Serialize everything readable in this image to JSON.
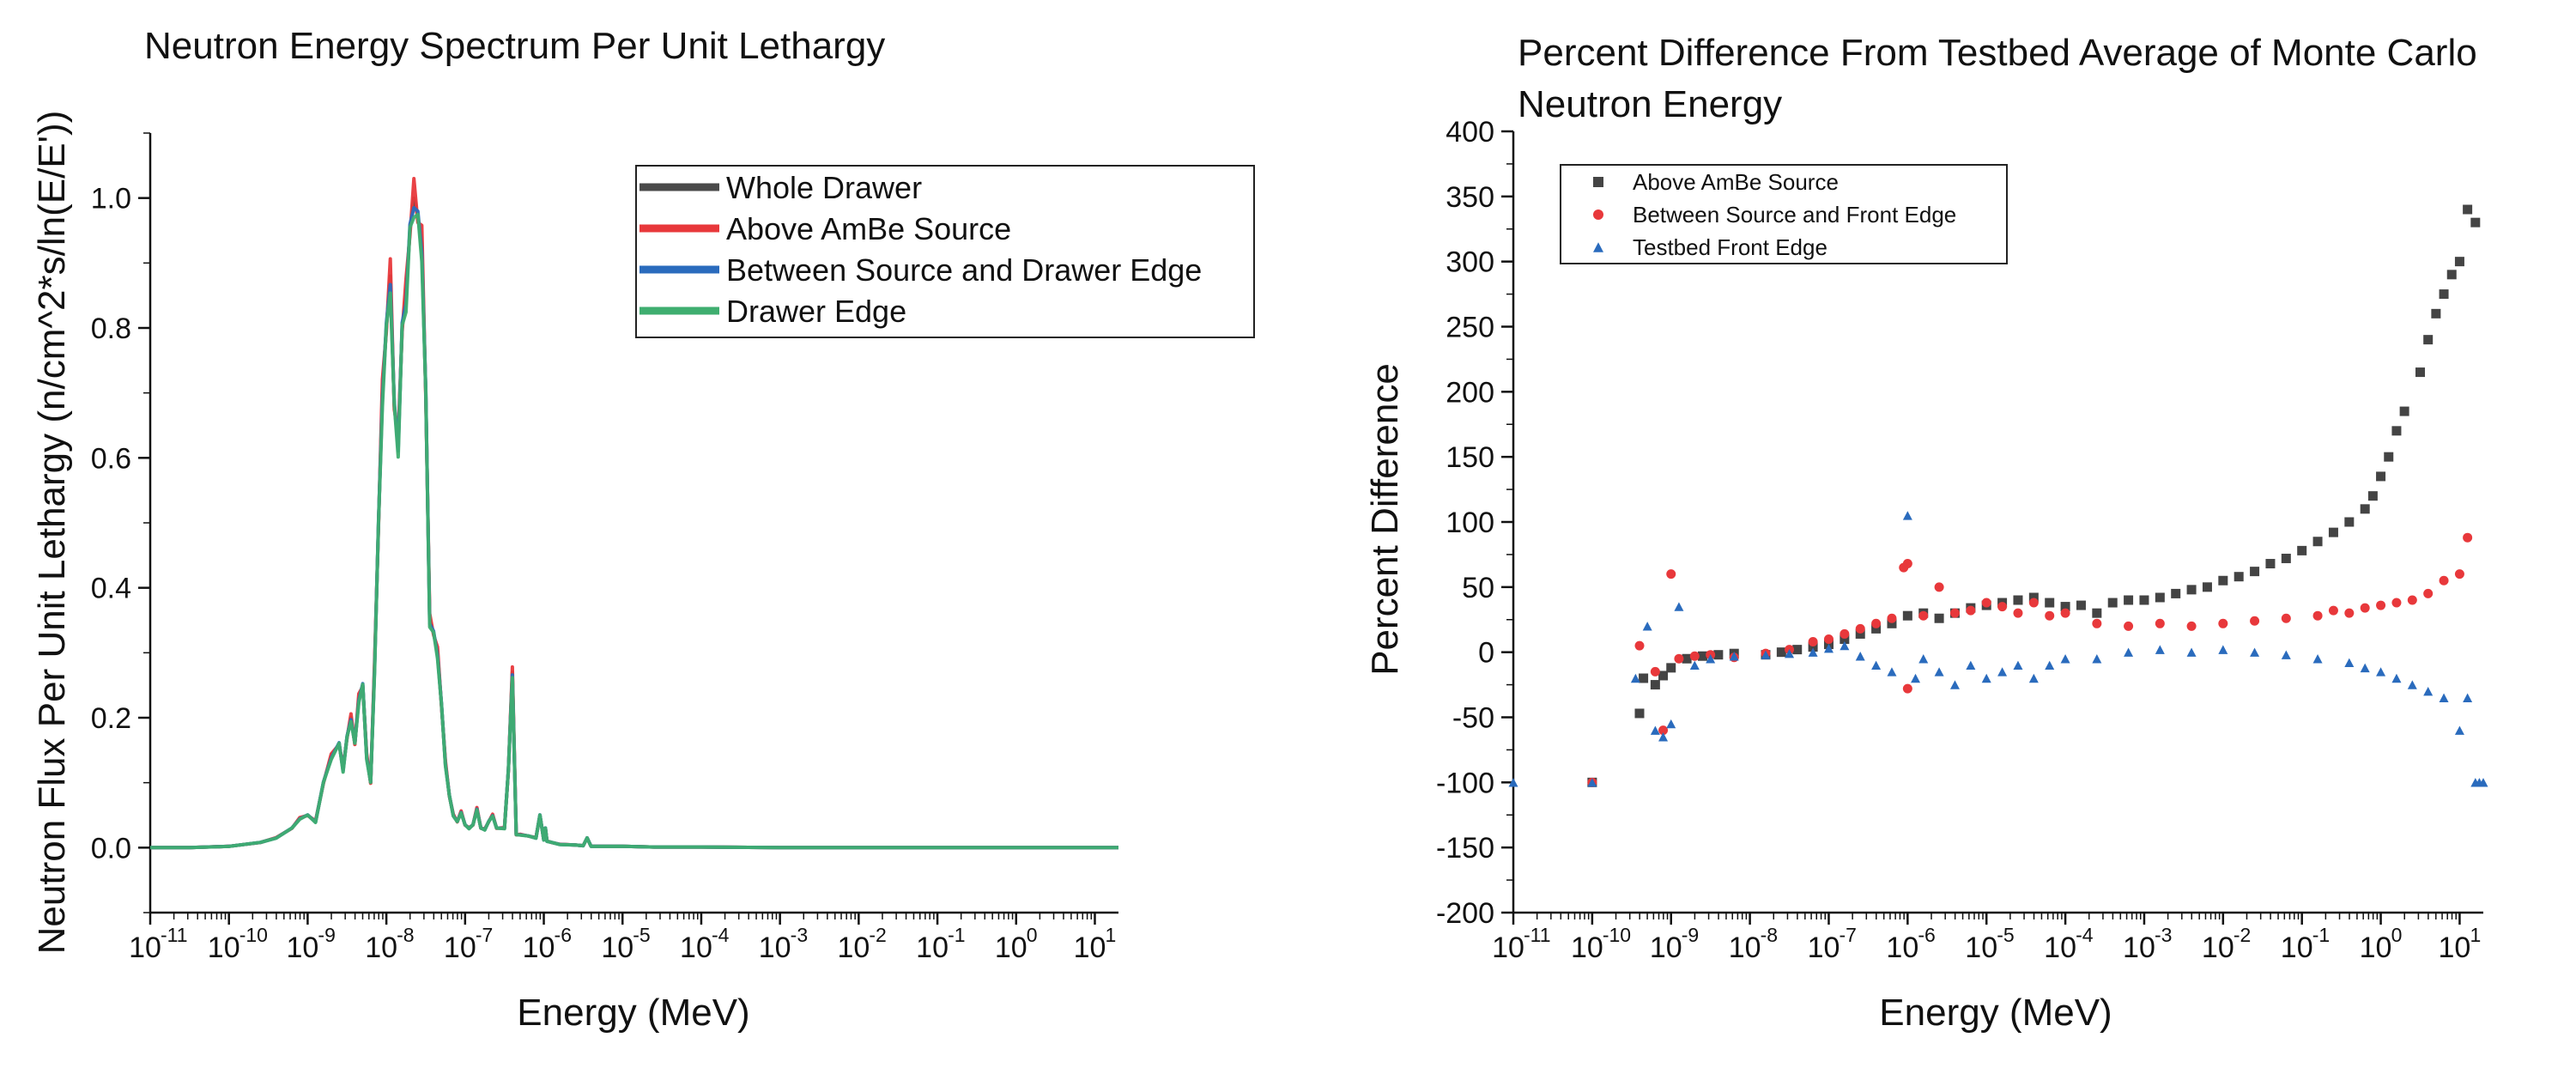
{
  "chart_data": [
    {
      "type": "line",
      "title": "Neutron Energy Spectrum Per Unit Lethargy",
      "xlabel": "Energy (MeV)",
      "ylabel": "Neutron Flux Per Unit Lethargy (n/cm^2*s/ln(E/E'))",
      "x_scale": "log",
      "xlim_exp": [
        -11,
        1.3
      ],
      "ylim": [
        -0.1,
        1.1
      ],
      "x_tick_exponents": [
        "-11",
        "-10",
        "-9",
        "-8",
        "-7",
        "-6",
        "-5",
        "-4",
        "-3",
        "-2",
        "-1",
        "0",
        "1"
      ],
      "x_tick_base": "10",
      "y_ticks": [
        "0.0",
        "0.2",
        "0.4",
        "0.6",
        "0.8",
        "1.0"
      ],
      "y_tick_values": [
        0,
        0.2,
        0.4,
        0.6,
        0.8,
        1.0
      ],
      "series": [
        {
          "name": "Whole Drawer",
          "color": "#4a4a4a"
        },
        {
          "name": "Above AmBe Source",
          "color": "#e8383b"
        },
        {
          "name": "Between Source and Drawer Edge",
          "color": "#2a6bbd"
        },
        {
          "name": "Drawer Edge",
          "color": "#3fae70"
        }
      ],
      "x_log10": [
        -11,
        -10.5,
        -10,
        -9.6,
        -9.4,
        -9.2,
        -9.1,
        -9.0,
        -8.9,
        -8.8,
        -8.7,
        -8.6,
        -8.55,
        -8.5,
        -8.45,
        -8.4,
        -8.35,
        -8.3,
        -8.25,
        -8.2,
        -8.15,
        -8.1,
        -8.05,
        -8.0,
        -7.95,
        -7.9,
        -7.85,
        -7.8,
        -7.75,
        -7.7,
        -7.65,
        -7.6,
        -7.55,
        -7.5,
        -7.45,
        -7.4,
        -7.35,
        -7.3,
        -7.25,
        -7.2,
        -7.15,
        -7.1,
        -7.05,
        -7.0,
        -6.95,
        -6.9,
        -6.85,
        -6.8,
        -6.75,
        -6.7,
        -6.65,
        -6.6,
        -6.5,
        -6.45,
        -6.4,
        -6.35,
        -6.3,
        -6.2,
        -6.1,
        -6.05,
        -6.0,
        -5.98,
        -5.96,
        -5.9,
        -5.8,
        -5.6,
        -5.5,
        -5.45,
        -5.4,
        -5.0,
        -4.6,
        -4.5,
        -4.4,
        -4.0,
        -3.0,
        -2.0,
        -1.0,
        0.0,
        1.0,
        1.3
      ],
      "y_base": [
        0,
        0,
        0.002,
        0.008,
        0.015,
        0.03,
        0.045,
        0.05,
        0.04,
        0.1,
        0.14,
        0.16,
        0.12,
        0.17,
        0.2,
        0.16,
        0.23,
        0.25,
        0.14,
        0.1,
        0.28,
        0.5,
        0.7,
        0.8,
        0.88,
        0.68,
        0.62,
        0.8,
        0.85,
        0.95,
        1.0,
        0.97,
        0.93,
        0.7,
        0.35,
        0.33,
        0.3,
        0.22,
        0.13,
        0.08,
        0.05,
        0.04,
        0.055,
        0.035,
        0.03,
        0.035,
        0.06,
        0.03,
        0.028,
        0.04,
        0.05,
        0.03,
        0.03,
        0.12,
        0.27,
        0.02,
        0.02,
        0.018,
        0.015,
        0.05,
        0.012,
        0.03,
        0.01,
        0.008,
        0.005,
        0.004,
        0.003,
        0.015,
        0.002,
        0.002,
        0.001,
        0.001,
        0.001,
        0.001,
        0,
        0,
        0,
        0,
        0,
        0
      ]
    },
    {
      "type": "scatter",
      "title": "Percent Difference From Testbed Average of Monte Carlo Neutron Energy",
      "title_lines": [
        "Percent Difference From Testbed Average of Monte Carlo",
        "Neutron Energy"
      ],
      "xlabel": "Energy (MeV)",
      "ylabel": "Percent Difference",
      "x_scale": "log",
      "xlim_exp": [
        -11,
        1.3
      ],
      "ylim": [
        -200,
        400
      ],
      "x_tick_exponents": [
        "-11",
        "-10",
        "-9",
        "-8",
        "-7",
        "-6",
        "-5",
        "-4",
        "-3",
        "-2",
        "-1",
        "0",
        "1"
      ],
      "x_tick_base": "10",
      "y_ticks": [
        "-200",
        "-150",
        "-100",
        "-50",
        "0",
        "50",
        "100",
        "150",
        "200",
        "250",
        "300",
        "350",
        "400"
      ],
      "y_tick_values": [
        -200,
        -150,
        -100,
        -50,
        0,
        50,
        100,
        150,
        200,
        250,
        300,
        350,
        400
      ],
      "series": [
        {
          "name": "Above AmBe Source",
          "marker": "square",
          "color": "#444444",
          "points": [
            [
              -10,
              -100
            ],
            [
              -9.4,
              -47
            ],
            [
              -9.35,
              -20
            ],
            [
              -9.2,
              -25
            ],
            [
              -9.1,
              -18
            ],
            [
              -9.0,
              -12
            ],
            [
              -8.8,
              -5
            ],
            [
              -8.6,
              -3
            ],
            [
              -8.4,
              -2
            ],
            [
              -8.2,
              -1
            ],
            [
              -7.8,
              -2
            ],
            [
              -7.6,
              0
            ],
            [
              -7.4,
              2
            ],
            [
              -7.2,
              4
            ],
            [
              -7.0,
              6
            ],
            [
              -6.8,
              10
            ],
            [
              -6.6,
              14
            ],
            [
              -6.4,
              18
            ],
            [
              -6.2,
              22
            ],
            [
              -6.0,
              28
            ],
            [
              -5.8,
              30
            ],
            [
              -5.6,
              26
            ],
            [
              -5.4,
              30
            ],
            [
              -5.2,
              34
            ],
            [
              -5.0,
              36
            ],
            [
              -4.8,
              38
            ],
            [
              -4.6,
              40
            ],
            [
              -4.4,
              42
            ],
            [
              -4.2,
              38
            ],
            [
              -4.0,
              35
            ],
            [
              -3.8,
              36
            ],
            [
              -3.6,
              30
            ],
            [
              -3.4,
              38
            ],
            [
              -3.2,
              40
            ],
            [
              -3.0,
              40
            ],
            [
              -2.8,
              42
            ],
            [
              -2.6,
              45
            ],
            [
              -2.4,
              48
            ],
            [
              -2.2,
              50
            ],
            [
              -2.0,
              55
            ],
            [
              -1.8,
              58
            ],
            [
              -1.6,
              62
            ],
            [
              -1.4,
              68
            ],
            [
              -1.2,
              72
            ],
            [
              -1.0,
              78
            ],
            [
              -0.8,
              85
            ],
            [
              -0.6,
              92
            ],
            [
              -0.4,
              100
            ],
            [
              -0.2,
              110
            ],
            [
              -0.1,
              120
            ],
            [
              0.0,
              135
            ],
            [
              0.1,
              150
            ],
            [
              0.2,
              170
            ],
            [
              0.3,
              185
            ],
            [
              0.5,
              215
            ],
            [
              0.6,
              240
            ],
            [
              0.7,
              260
            ],
            [
              0.8,
              275
            ],
            [
              0.9,
              290
            ],
            [
              1.0,
              300
            ],
            [
              1.1,
              340
            ],
            [
              1.2,
              330
            ]
          ]
        },
        {
          "name": "Between Source and Front Edge",
          "marker": "circle",
          "color": "#e8383b",
          "points": [
            [
              -10,
              -100
            ],
            [
              -9.4,
              5
            ],
            [
              -9.2,
              -15
            ],
            [
              -9.1,
              -60
            ],
            [
              -9.0,
              60
            ],
            [
              -8.9,
              -5
            ],
            [
              -8.7,
              -3
            ],
            [
              -8.5,
              -2
            ],
            [
              -8.2,
              -4
            ],
            [
              -7.8,
              -1
            ],
            [
              -7.5,
              2
            ],
            [
              -7.2,
              8
            ],
            [
              -7.0,
              10
            ],
            [
              -6.8,
              14
            ],
            [
              -6.6,
              18
            ],
            [
              -6.4,
              22
            ],
            [
              -6.2,
              26
            ],
            [
              -6.0,
              68
            ],
            [
              -6.05,
              65
            ],
            [
              -6.0,
              -28
            ],
            [
              -5.8,
              28
            ],
            [
              -5.6,
              50
            ],
            [
              -5.4,
              30
            ],
            [
              -5.2,
              32
            ],
            [
              -5.0,
              38
            ],
            [
              -4.8,
              35
            ],
            [
              -4.6,
              30
            ],
            [
              -4.4,
              38
            ],
            [
              -4.2,
              28
            ],
            [
              -4.0,
              30
            ],
            [
              -3.6,
              22
            ],
            [
              -3.2,
              20
            ],
            [
              -2.8,
              22
            ],
            [
              -2.4,
              20
            ],
            [
              -2.0,
              22
            ],
            [
              -1.6,
              24
            ],
            [
              -1.2,
              26
            ],
            [
              -0.8,
              28
            ],
            [
              -0.6,
              32
            ],
            [
              -0.4,
              30
            ],
            [
              -0.2,
              34
            ],
            [
              0.0,
              36
            ],
            [
              0.2,
              38
            ],
            [
              0.4,
              40
            ],
            [
              0.6,
              45
            ],
            [
              0.8,
              55
            ],
            [
              1.0,
              60
            ],
            [
              1.1,
              88
            ]
          ]
        },
        {
          "name": "Testbed Front Edge",
          "marker": "triangle",
          "color": "#2a6bbd",
          "points": [
            [
              -11,
              -100
            ],
            [
              -10,
              -100
            ],
            [
              -9.45,
              -20
            ],
            [
              -9.3,
              20
            ],
            [
              -9.2,
              -60
            ],
            [
              -9.1,
              -65
            ],
            [
              -9.0,
              -55
            ],
            [
              -8.9,
              35
            ],
            [
              -8.7,
              -10
            ],
            [
              -8.5,
              -5
            ],
            [
              -8.2,
              -3
            ],
            [
              -7.8,
              -2
            ],
            [
              -7.5,
              -1
            ],
            [
              -7.2,
              0
            ],
            [
              -7.0,
              3
            ],
            [
              -6.8,
              5
            ],
            [
              -6.6,
              -3
            ],
            [
              -6.4,
              -10
            ],
            [
              -6.2,
              -15
            ],
            [
              -6.0,
              105
            ],
            [
              -5.9,
              -20
            ],
            [
              -5.8,
              -5
            ],
            [
              -5.6,
              -15
            ],
            [
              -5.4,
              -25
            ],
            [
              -5.2,
              -10
            ],
            [
              -5.0,
              -20
            ],
            [
              -4.8,
              -15
            ],
            [
              -4.6,
              -10
            ],
            [
              -4.4,
              -20
            ],
            [
              -4.2,
              -10
            ],
            [
              -4.0,
              -5
            ],
            [
              -3.6,
              -5
            ],
            [
              -3.2,
              0
            ],
            [
              -2.8,
              2
            ],
            [
              -2.4,
              0
            ],
            [
              -2.0,
              2
            ],
            [
              -1.6,
              0
            ],
            [
              -1.2,
              -2
            ],
            [
              -0.8,
              -5
            ],
            [
              -0.4,
              -8
            ],
            [
              -0.2,
              -12
            ],
            [
              0.0,
              -15
            ],
            [
              0.2,
              -20
            ],
            [
              0.4,
              -25
            ],
            [
              0.6,
              -30
            ],
            [
              0.8,
              -35
            ],
            [
              1.0,
              -60
            ],
            [
              1.1,
              -35
            ],
            [
              1.2,
              -100
            ],
            [
              1.25,
              -100
            ],
            [
              1.3,
              -100
            ]
          ]
        }
      ],
      "legend_placement": "top-left"
    }
  ]
}
